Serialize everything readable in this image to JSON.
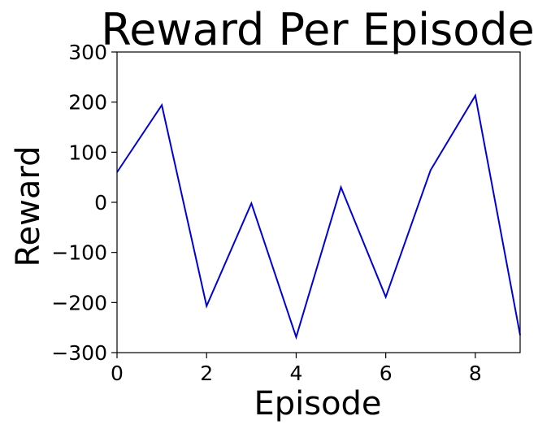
{
  "chart_data": {
    "type": "line",
    "title": "Reward Per Episode",
    "xlabel": "Episode",
    "ylabel": "Reward",
    "xlim": [
      0,
      9
    ],
    "ylim": [
      -300,
      300
    ],
    "xticks": [
      0,
      2,
      4,
      6,
      8
    ],
    "yticks": [
      -300,
      -200,
      -100,
      0,
      100,
      200,
      300
    ],
    "xtick_labels": [
      "0",
      "2",
      "4",
      "6",
      "8"
    ],
    "ytick_labels": [
      "−300",
      "−200",
      "−100",
      "0",
      "100",
      "200",
      "300"
    ],
    "grid": false,
    "series": [
      {
        "color": "#0000dd",
        "x": [
          0,
          1,
          2,
          3,
          4,
          5,
          6,
          7,
          8,
          9
        ],
        "y": [
          60,
          194,
          -207,
          -2,
          -269,
          30,
          -189,
          64,
          213,
          -265
        ]
      }
    ]
  }
}
